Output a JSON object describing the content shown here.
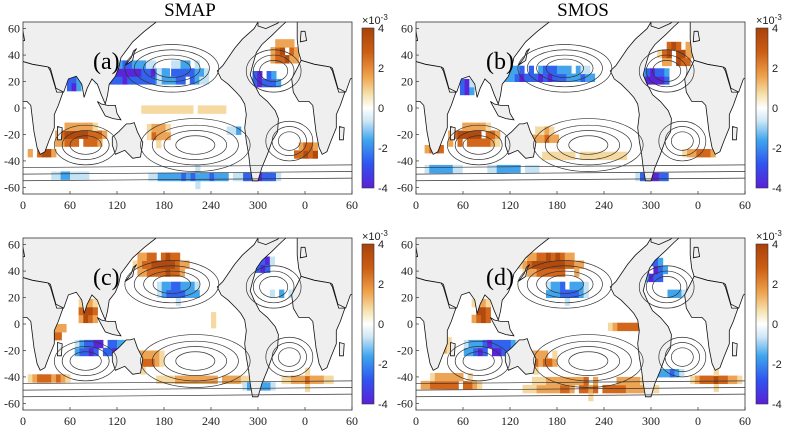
{
  "figure": {
    "column_titles": [
      "SMAP",
      "SMOS"
    ],
    "colorbar": {
      "exponent_label": "×10",
      "exponent_power": "-3",
      "ticks": [
        "4",
        "2",
        "0",
        "-2",
        "-4"
      ],
      "range": [
        -0.004,
        0.004
      ],
      "colormap": [
        "#5b1fd6",
        "#2f54f0",
        "#3fa6ee",
        "#cfe7f5",
        "#ffffff",
        "#f6e3b0",
        "#eea24c",
        "#cc5d14",
        "#a8420c"
      ]
    },
    "x_axis_ticks": [
      "0",
      "60",
      "120",
      "180",
      "240",
      "300",
      "0",
      "60"
    ],
    "y_axis_ticks": [
      "60",
      "40",
      "20",
      "0",
      "-20",
      "-40",
      "-60"
    ],
    "panels": [
      {
        "label": "(a)",
        "row": 0,
        "col": 0
      },
      {
        "label": "(b)",
        "row": 0,
        "col": 1
      },
      {
        "label": "(c)",
        "row": 1,
        "col": 0
      },
      {
        "label": "(d)",
        "row": 1,
        "col": 1
      }
    ]
  }
}
